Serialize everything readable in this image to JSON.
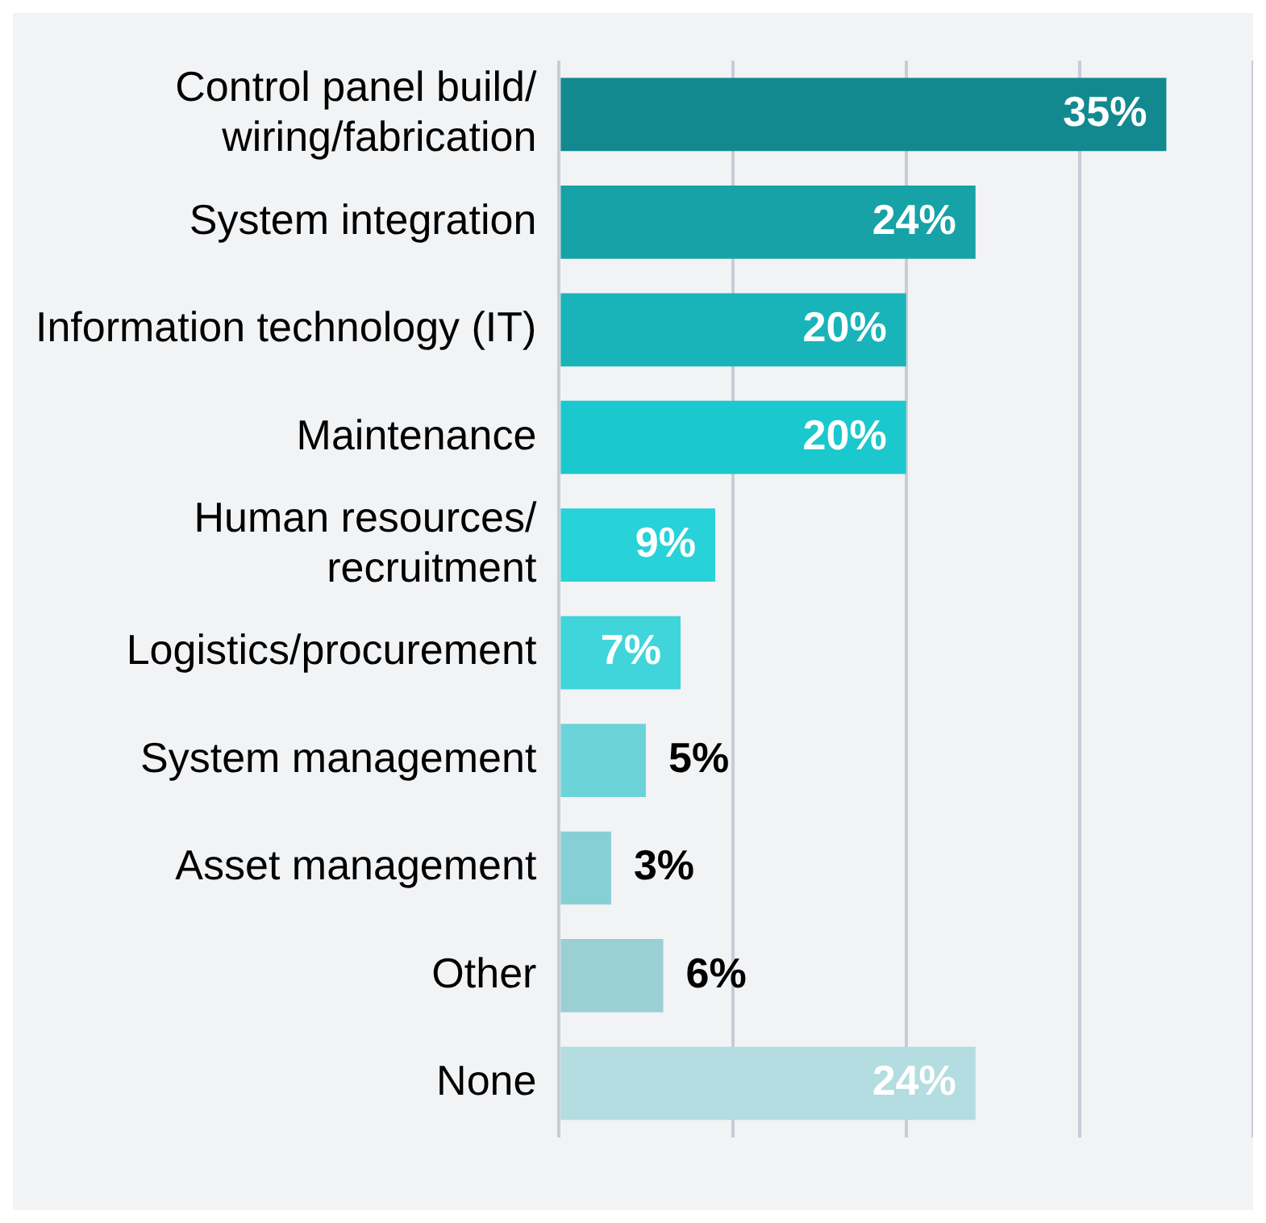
{
  "chart_data": {
    "type": "bar",
    "orientation": "horizontal",
    "categories": [
      "Control panel build/\nwiring/fabrication",
      "System integration",
      "Information technology (IT)",
      "Maintenance",
      "Human resources/\nrecruitment",
      "Logistics/procurement",
      "System management",
      "Asset management",
      "Other",
      "None"
    ],
    "values": [
      35,
      24,
      20,
      20,
      9,
      7,
      5,
      3,
      6,
      24
    ],
    "value_labels": [
      "35%",
      "24%",
      "20%",
      "20%",
      "9%",
      "7%",
      "5%",
      "3%",
      "6%",
      "24%"
    ],
    "colors": [
      "#12898e",
      "#16a2a7",
      "#18b4ba",
      "#1ac8ce",
      "#27d2d8",
      "#3fd5db",
      "#6cd3d9",
      "#86cfd5",
      "#9acfd4",
      "#b3dde0"
    ],
    "tick_labels": "y",
    "grid": "x"
  }
}
